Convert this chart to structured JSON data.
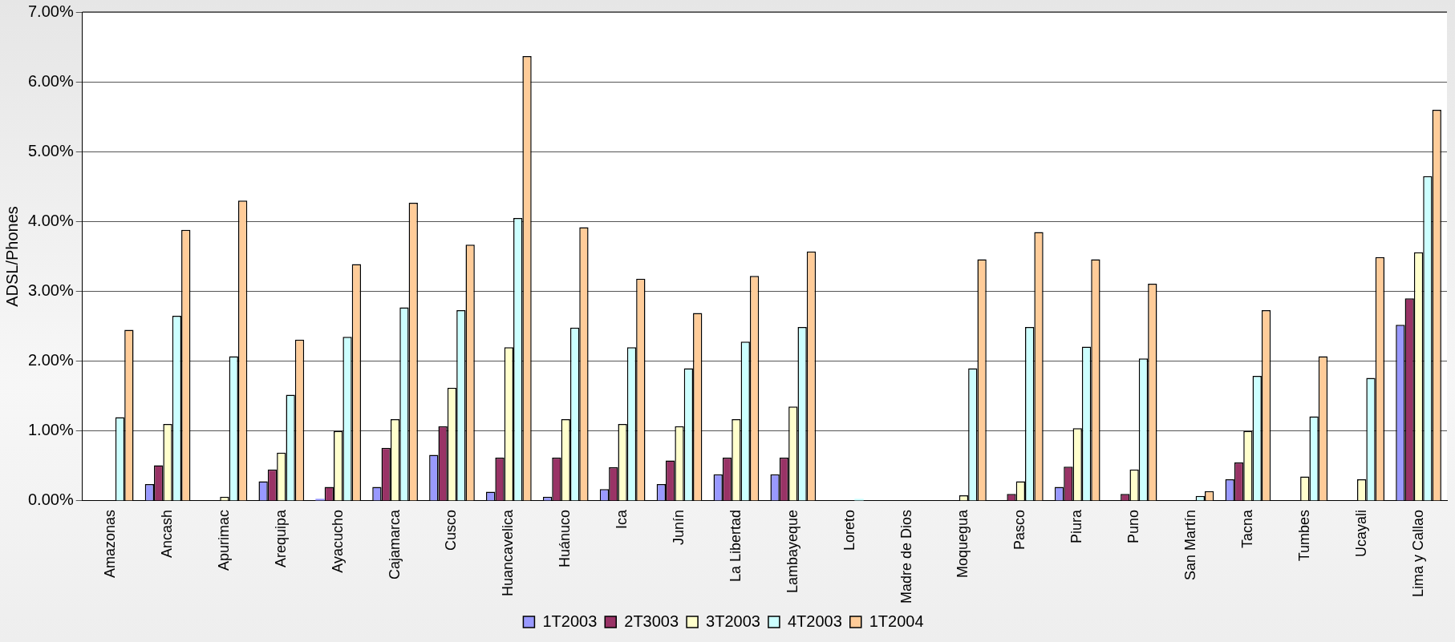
{
  "chart_data": {
    "type": "bar",
    "ylabel": "ADSL/Phones",
    "categories": [
      "Amazonas",
      "Ancash",
      "Apurimac",
      "Arequipa",
      "Ayacucho",
      "Cajamarca",
      "Cusco",
      "Huancavelica",
      "Huánuco",
      "Ica",
      "Junín",
      "La Libertad",
      "Lambayeque",
      "Loreto",
      "Madre de Dios",
      "Moquegua",
      "Pasco",
      "Piura",
      "Puno",
      "San Martín",
      "Tacna",
      "Tumbes",
      "Ucayali",
      "Lima y Callao"
    ],
    "series": [
      {
        "name": "1T2003",
        "color": "#9999ff",
        "values": [
          0,
          0.24,
          0,
          0.28,
          0.03,
          0.2,
          0.66,
          0.13,
          0.06,
          0.17,
          0.24,
          0.38,
          0.38,
          0,
          0,
          0,
          0,
          0.2,
          0,
          0,
          0.31,
          0,
          0,
          2.52
        ]
      },
      {
        "name": "2T3003",
        "color": "#993366",
        "values": [
          0,
          0.51,
          0,
          0.45,
          0.2,
          0.76,
          1.07,
          0.62,
          0.62,
          0.48,
          0.58,
          0.62,
          0.62,
          0,
          0,
          0,
          0.1,
          0.49,
          0.1,
          0,
          0.55,
          0,
          0,
          2.9
        ]
      },
      {
        "name": "3T2003",
        "color": "#ffffcc",
        "values": [
          0,
          1.1,
          0.06,
          0.69,
          1.0,
          1.17,
          1.62,
          2.2,
          1.17,
          1.1,
          1.07,
          1.17,
          1.35,
          0,
          0,
          0.08,
          0.28,
          1.04,
          0.45,
          0,
          1.0,
          0.35,
          0.31,
          3.56
        ]
      },
      {
        "name": "4T2003",
        "color": "#ccffff",
        "values": [
          1.2,
          2.65,
          2.07,
          1.52,
          2.35,
          2.77,
          2.73,
          4.05,
          2.48,
          2.2,
          1.9,
          2.28,
          2.49,
          0.03,
          0,
          1.9,
          2.49,
          2.21,
          2.04,
          0.07,
          1.79,
          1.21,
          1.76,
          4.65
        ]
      },
      {
        "name": "1T2004",
        "color": "#ffcc99",
        "values": [
          2.45,
          3.88,
          4.3,
          2.31,
          3.39,
          4.27,
          3.67,
          6.37,
          3.92,
          3.18,
          2.69,
          3.22,
          3.57,
          0,
          0,
          3.46,
          3.85,
          3.46,
          3.11,
          0.14,
          2.73,
          2.07,
          3.49,
          5.6
        ]
      }
    ],
    "ylim": [
      0,
      7
    ],
    "yticks": [
      {
        "value": 0,
        "label": "0.00%"
      },
      {
        "value": 1,
        "label": "1.00%"
      },
      {
        "value": 2,
        "label": "2.00%"
      },
      {
        "value": 3,
        "label": "3.00%"
      },
      {
        "value": 4,
        "label": "4.00%"
      },
      {
        "value": 5,
        "label": "5.00%"
      },
      {
        "value": 6,
        "label": "6.00%"
      },
      {
        "value": 7,
        "label": "7.00%"
      }
    ],
    "grid": "y",
    "legend": "bottom"
  }
}
